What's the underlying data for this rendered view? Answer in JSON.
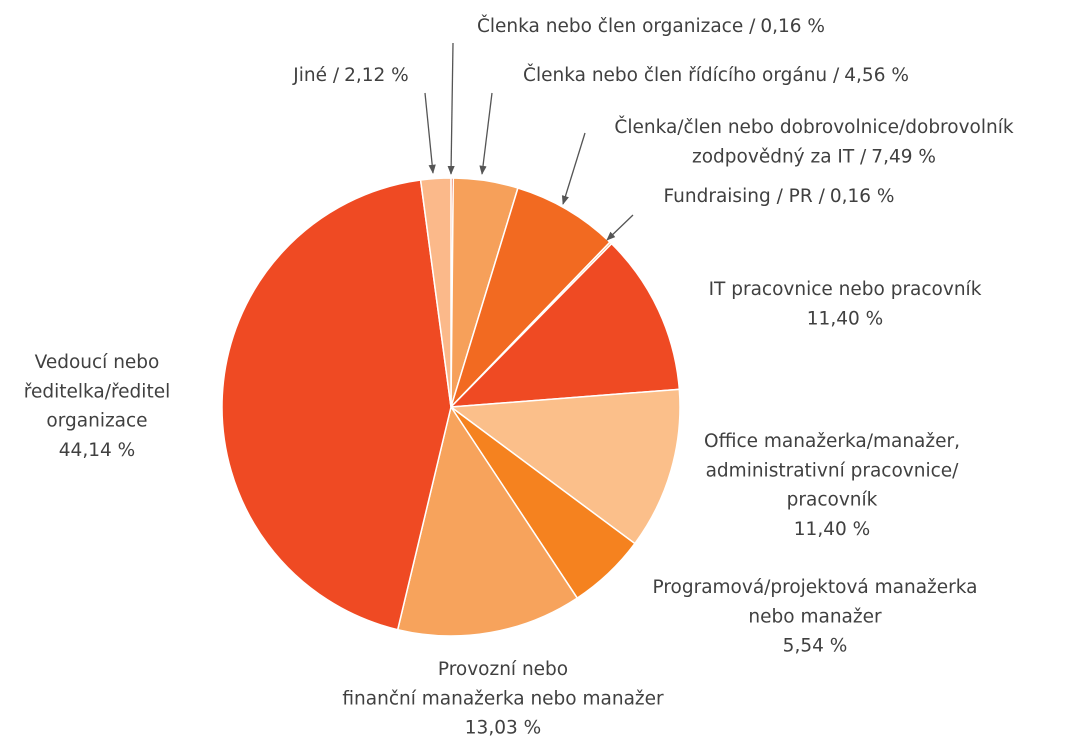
{
  "chart_data": {
    "type": "pie",
    "categories": [
      [
        "Členka nebo člen organizace /"
      ],
      [
        "Členka nebo člen řídícího orgánu /"
      ],
      [
        "Členka/člen nebo dobrovolnice/dobrovolník",
        "zodpovědný za IT /"
      ],
      [
        "Fundraising / PR  /"
      ],
      [
        "IT pracovnice nebo pracovník"
      ],
      [
        "Office manažerka/manažer,",
        "administrativní pracovnice/",
        "pracovník"
      ],
      [
        "Programová/projektová manažerka",
        "nebo manažer"
      ],
      [
        "Provozní nebo",
        "finanční manažerka nebo manažer"
      ],
      [
        "Vedoucí nebo",
        "ředitelka/ředitel",
        "organizace"
      ],
      [
        "Jiné /"
      ]
    ],
    "values": [
      0.16,
      4.56,
      7.49,
      0.16,
      11.4,
      11.4,
      5.54,
      13.03,
      44.14,
      2.12
    ],
    "value_labels": [
      "0,16 %",
      "4,56 %",
      "7,49 %",
      "0,16 %",
      "11,40 %",
      "11,40 %",
      "5,54 %",
      "13,03 %",
      "44,14 %",
      "2,12 %"
    ],
    "colors": [
      "#e8542b",
      "#f6a05a",
      "#f26a21",
      "#f8b27a",
      "#ef4a23",
      "#fbbf8a",
      "#f5821f",
      "#f7a35c",
      "#ef4a23",
      "#fbb98a"
    ]
  }
}
